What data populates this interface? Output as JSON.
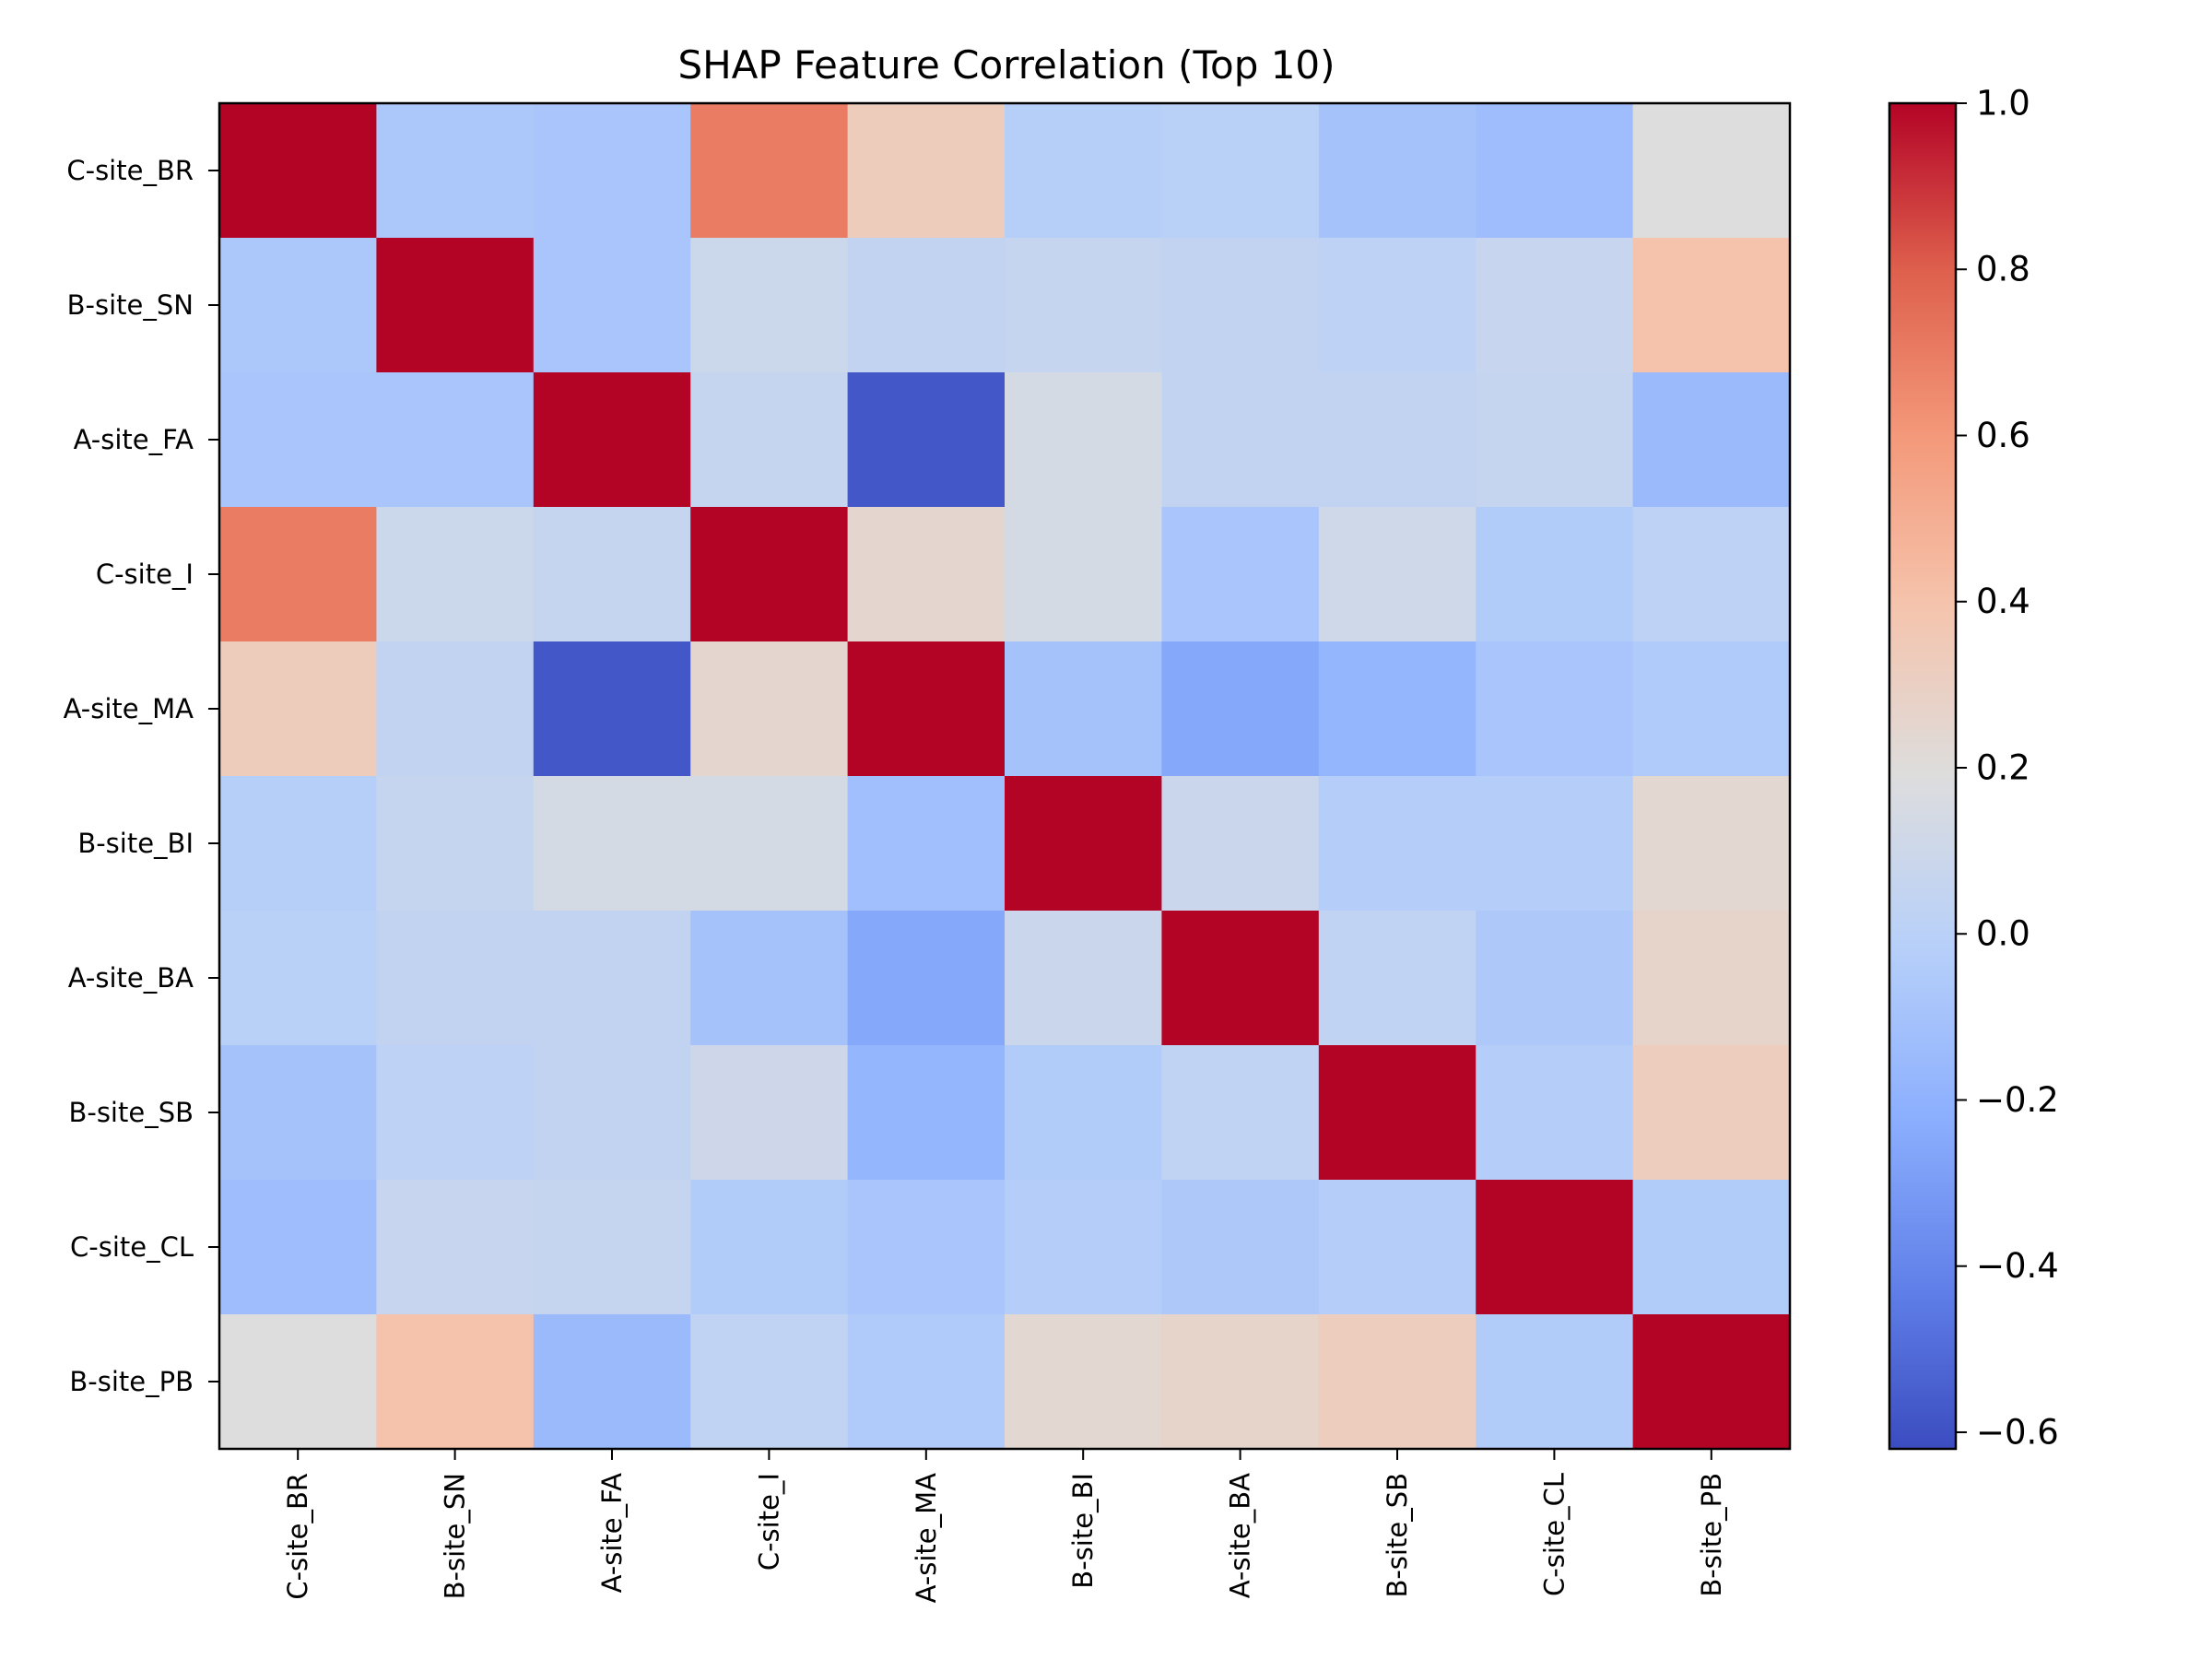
{
  "chart_data": {
    "type": "heatmap",
    "title": "SHAP Feature Correlation (Top 10)",
    "xlabel": "",
    "ylabel": "",
    "row_labels": [
      "C-site_BR",
      "B-site_SN",
      "A-site_FA",
      "C-site_I",
      "A-site_MA",
      "B-site_BI",
      "A-site_BA",
      "B-site_SB",
      "C-site_CL",
      "B-site_PB"
    ],
    "col_labels": [
      "C-site_BR",
      "B-site_SN",
      "A-site_FA",
      "C-site_I",
      "A-site_MA",
      "B-site_BI",
      "A-site_BA",
      "B-site_SB",
      "C-site_CL",
      "B-site_PB"
    ],
    "values": [
      [
        1.0,
        -0.07,
        -0.08,
        0.7,
        0.33,
        -0.02,
        0.0,
        -0.1,
        -0.13,
        0.19
      ],
      [
        -0.07,
        1.0,
        -0.08,
        0.09,
        0.04,
        0.06,
        0.04,
        0.02,
        0.07,
        0.4
      ],
      [
        -0.08,
        -0.08,
        1.0,
        0.06,
        -0.58,
        0.14,
        0.04,
        0.04,
        0.06,
        -0.15
      ],
      [
        0.7,
        0.09,
        0.06,
        1.0,
        0.25,
        0.14,
        -0.08,
        0.11,
        -0.04,
        0.02
      ],
      [
        0.33,
        0.04,
        -0.58,
        0.25,
        1.0,
        -0.1,
        -0.25,
        -0.18,
        -0.08,
        -0.05
      ],
      [
        -0.02,
        0.06,
        0.14,
        0.14,
        -0.12,
        1.0,
        0.08,
        -0.03,
        -0.03,
        0.24
      ],
      [
        0.0,
        0.04,
        0.04,
        -0.1,
        -0.25,
        0.08,
        1.0,
        0.03,
        -0.06,
        0.27
      ],
      [
        -0.1,
        0.02,
        0.04,
        0.1,
        -0.18,
        -0.04,
        0.03,
        1.0,
        -0.03,
        0.32
      ],
      [
        -0.13,
        0.07,
        0.06,
        -0.04,
        -0.08,
        -0.03,
        -0.06,
        -0.03,
        1.0,
        -0.04
      ],
      [
        0.19,
        0.4,
        -0.15,
        0.03,
        -0.05,
        0.24,
        0.27,
        0.32,
        -0.04,
        1.0
      ]
    ],
    "colormap": "coolwarm",
    "vmin": -0.62,
    "vmax": 1.0,
    "colorbar_ticks": [
      1.0,
      0.8,
      0.6,
      0.4,
      0.2,
      0.0,
      -0.2,
      -0.4,
      -0.6
    ],
    "colorbar_tick_labels": [
      "1.0",
      "0.8",
      "0.6",
      "0.4",
      "0.2",
      "0.0",
      "−0.2",
      "−0.4",
      "−0.6"
    ]
  }
}
